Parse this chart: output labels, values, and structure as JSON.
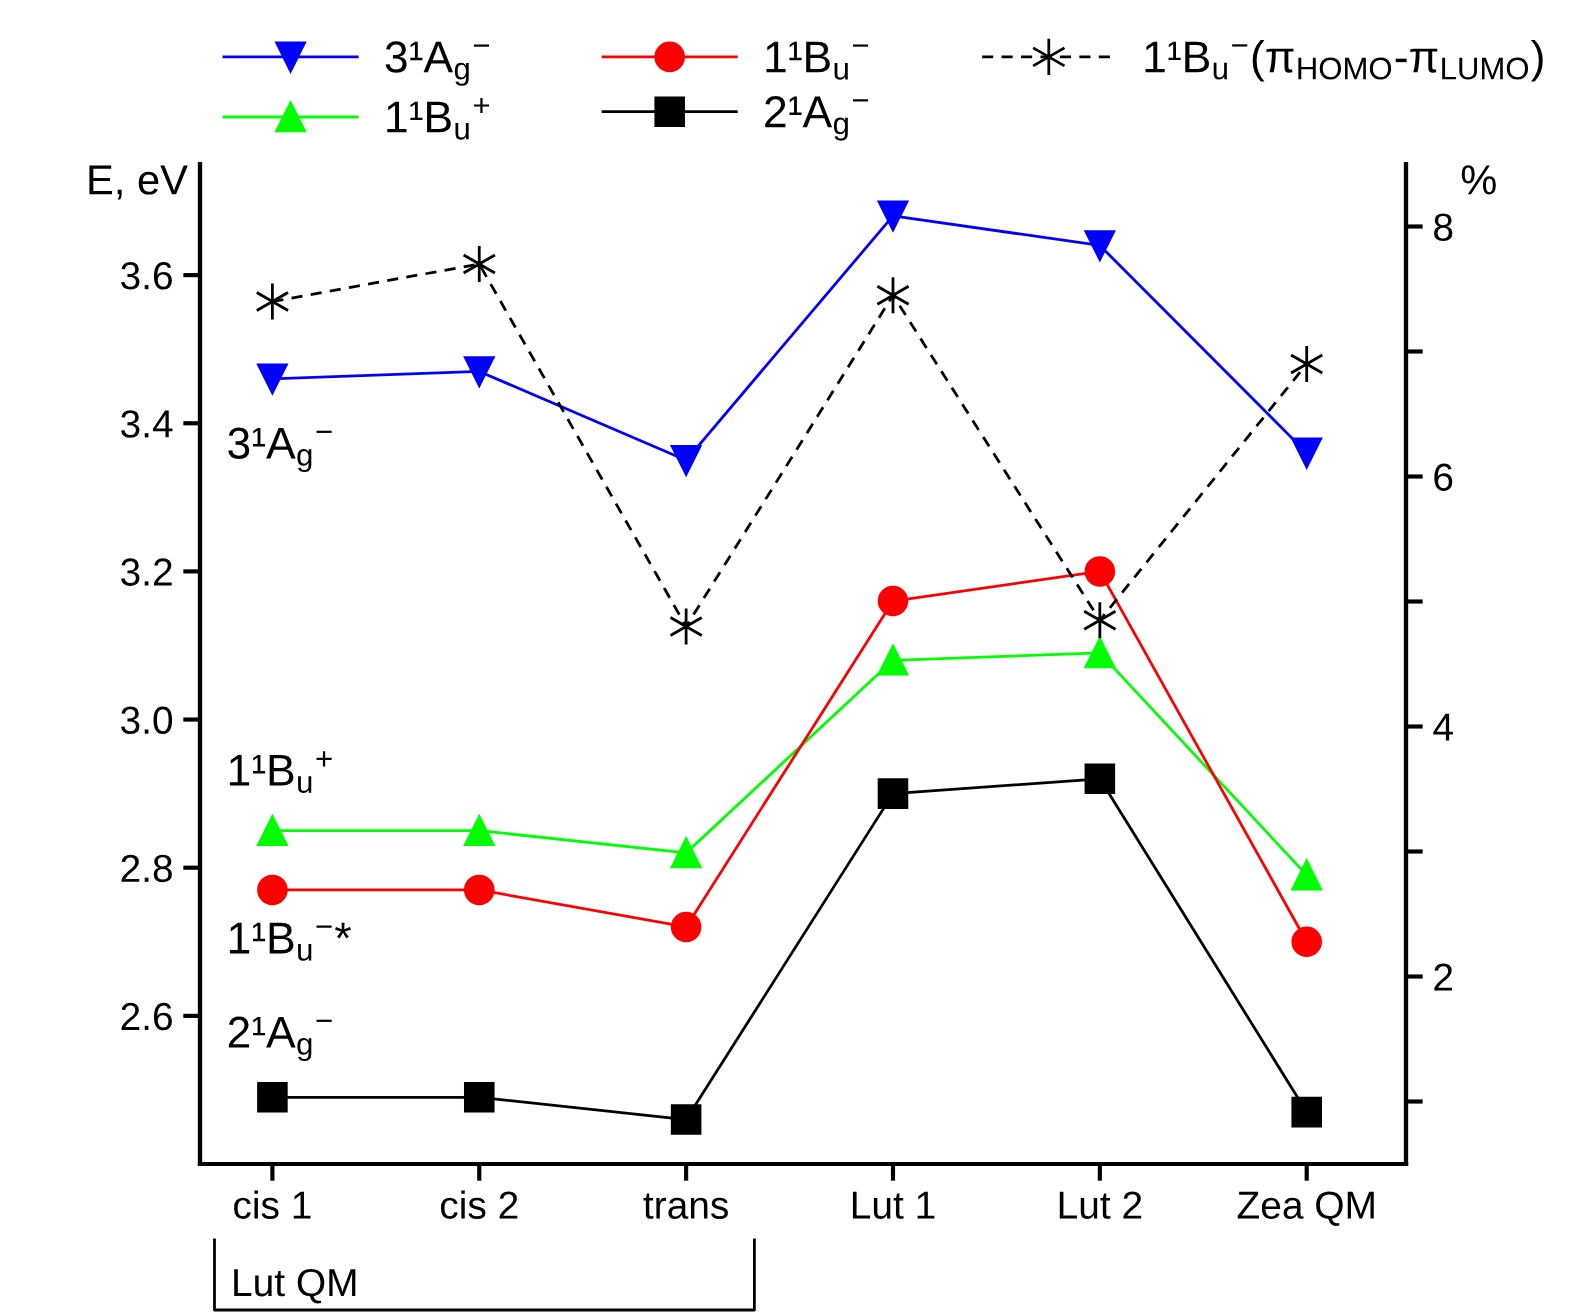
{
  "chart_data": {
    "type": "line",
    "ylabel": "E, eV",
    "y2label": "%",
    "categories": [
      "cis 1",
      "cis 2",
      "trans",
      "Lut 1",
      "Lut 2",
      "Zea QM"
    ],
    "series": [
      {
        "name": "3¹A$_{g}$$^{−}$",
        "color": "#0000ff",
        "marker": "triangle_down",
        "line_style": "solid",
        "values": [
          3.46,
          3.47,
          3.35,
          3.68,
          3.64,
          3.36
        ]
      },
      {
        "name": "1¹B$_{u}$$^{+}$",
        "color": "#00ff00",
        "marker": "triangle",
        "line_style": "solid",
        "values": [
          2.85,
          2.85,
          2.82,
          3.08,
          3.09,
          2.79
        ]
      },
      {
        "name": "1¹B$_{u}$$^{−}$",
        "color": "#ff0000",
        "marker": "circle",
        "line_style": "solid",
        "values": [
          2.77,
          2.77,
          2.72,
          3.16,
          3.2,
          2.7
        ]
      },
      {
        "name": "2¹A$_{g}$$^{−}$",
        "color": "#000000",
        "marker": "square",
        "line_style": "solid",
        "values": [
          2.49,
          2.49,
          2.46,
          2.9,
          2.92,
          2.47
        ]
      },
      {
        "name": "1¹B$_{u}$$^{−}$(π$_{HOMO}$-π$_{LUMO}$)",
        "color": "#000000",
        "marker": "cross",
        "line_style": "dashed",
        "axis": "y2",
        "values": [
          7.4,
          7.7,
          4.8,
          7.45,
          4.85,
          6.9
        ]
      }
    ],
    "ylim": [
      2.4,
      3.75
    ],
    "yticks": [
      2.6,
      2.8,
      {
        "value": 3,
        "label": "3.0"
      },
      3.2,
      3.4,
      3.6
    ],
    "y2lim": [
      0.5,
      8.5
    ],
    "y2ticks": [
      {
        "value": 1,
        "label": null
      },
      2,
      {
        "value": 3,
        "label": null
      },
      4,
      {
        "value": 5,
        "label": null
      },
      6,
      {
        "value": 7,
        "label": null
      },
      8
    ],
    "annotations": [
      "3¹A$_{g}$$^{−}$",
      "1¹B$_{u}$$^{+}$",
      "1¹B$_{u}$$^{−}$*",
      "2¹A$_{g}$$^{−}$",
      "Lut QM"
    ],
    "legend": "top",
    "grid": false
  }
}
